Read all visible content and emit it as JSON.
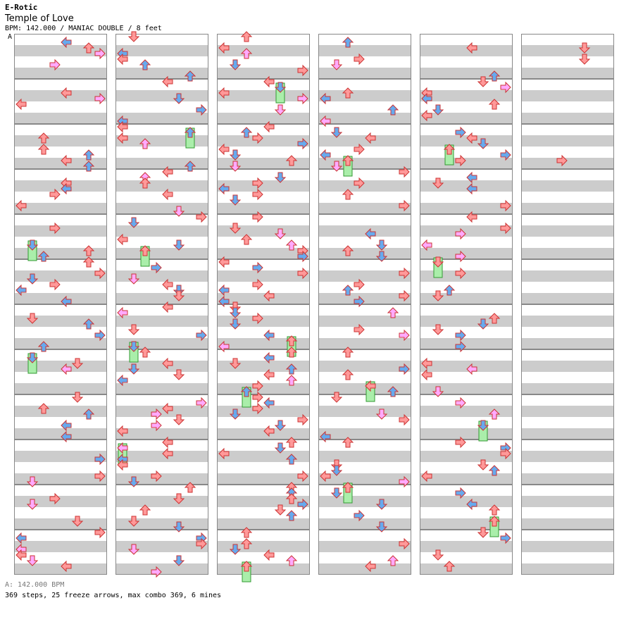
{
  "header": {
    "artist": "E-Rotic",
    "title": "Temple of Love",
    "meta": "BPM: 142.000 / MANIAC DOUBLE / 8 feet",
    "bpm_marker": "A"
  },
  "footer": {
    "legend": "A: 142.000 BPM",
    "stats": "369 steps, 25 freeze arrows, max combo 369, 6 mines"
  },
  "colors": {
    "red": "#ff9999",
    "blue": "#66aaee",
    "pink": "#ffaaff",
    "freeze": "#aaeeaa",
    "stripe": "#cccccc"
  },
  "chart_data": {
    "type": "step-chart",
    "style": "DOUBLE",
    "difficulty": "MANIAC",
    "feet": 8,
    "bpm": 142,
    "steps": 369,
    "freeze_arrows": 25,
    "max_combo": 369,
    "mines": 6,
    "columns": 6,
    "measures_per_column": 12,
    "lanes": [
      "L",
      "D",
      "U",
      "R",
      "L",
      "D",
      "U",
      "R"
    ]
  }
}
